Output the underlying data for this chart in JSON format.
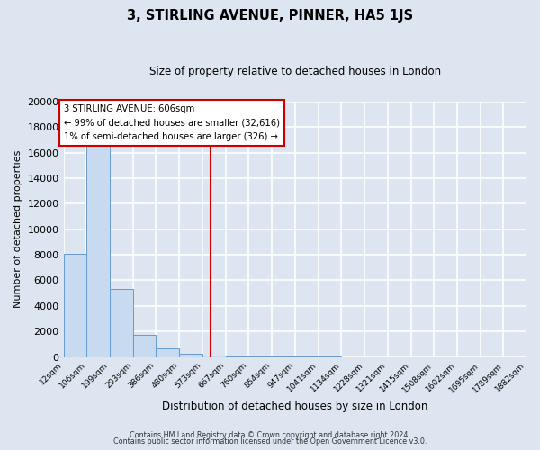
{
  "title": "3, STIRLING AVENUE, PINNER, HA5 1JS",
  "subtitle": "Size of property relative to detached houses in London",
  "xlabel": "Distribution of detached houses by size in London",
  "ylabel": "Number of detached properties",
  "bin_edges": [
    12,
    106,
    199,
    293,
    386,
    480,
    573,
    667,
    760,
    854,
    947,
    1041,
    1134,
    1228,
    1321,
    1415,
    1508,
    1602,
    1695,
    1789,
    1882
  ],
  "bin_labels": [
    "12sqm",
    "106sqm",
    "199sqm",
    "293sqm",
    "386sqm",
    "480sqm",
    "573sqm",
    "667sqm",
    "760sqm",
    "854sqm",
    "947sqm",
    "1041sqm",
    "1134sqm",
    "1228sqm",
    "1321sqm",
    "1415sqm",
    "1508sqm",
    "1602sqm",
    "1695sqm",
    "1789sqm",
    "1882sqm"
  ],
  "bar_heights": [
    8100,
    16600,
    5300,
    1750,
    680,
    280,
    120,
    70,
    30,
    15,
    10,
    5,
    3,
    2,
    2,
    1,
    1,
    1,
    0,
    0
  ],
  "bar_color": "#c8daf0",
  "bar_edge_color": "#6699cc",
  "vline_x": 606,
  "vline_color": "#cc0000",
  "annotation_title": "3 STIRLING AVENUE: 606sqm",
  "annotation_line1": "← 99% of detached houses are smaller (32,616)",
  "annotation_line2": "1% of semi-detached houses are larger (326) →",
  "annotation_box_color": "#ffffff",
  "annotation_box_edge": "#cc0000",
  "ylim": [
    0,
    20000
  ],
  "yticks": [
    0,
    2000,
    4000,
    6000,
    8000,
    10000,
    12000,
    14000,
    16000,
    18000,
    20000
  ],
  "background_color": "#dde6f0",
  "grid_color": "#ffffff",
  "footer1": "Contains HM Land Registry data © Crown copyright and database right 2024.",
  "footer2": "Contains public sector information licensed under the Open Government Licence v3.0."
}
